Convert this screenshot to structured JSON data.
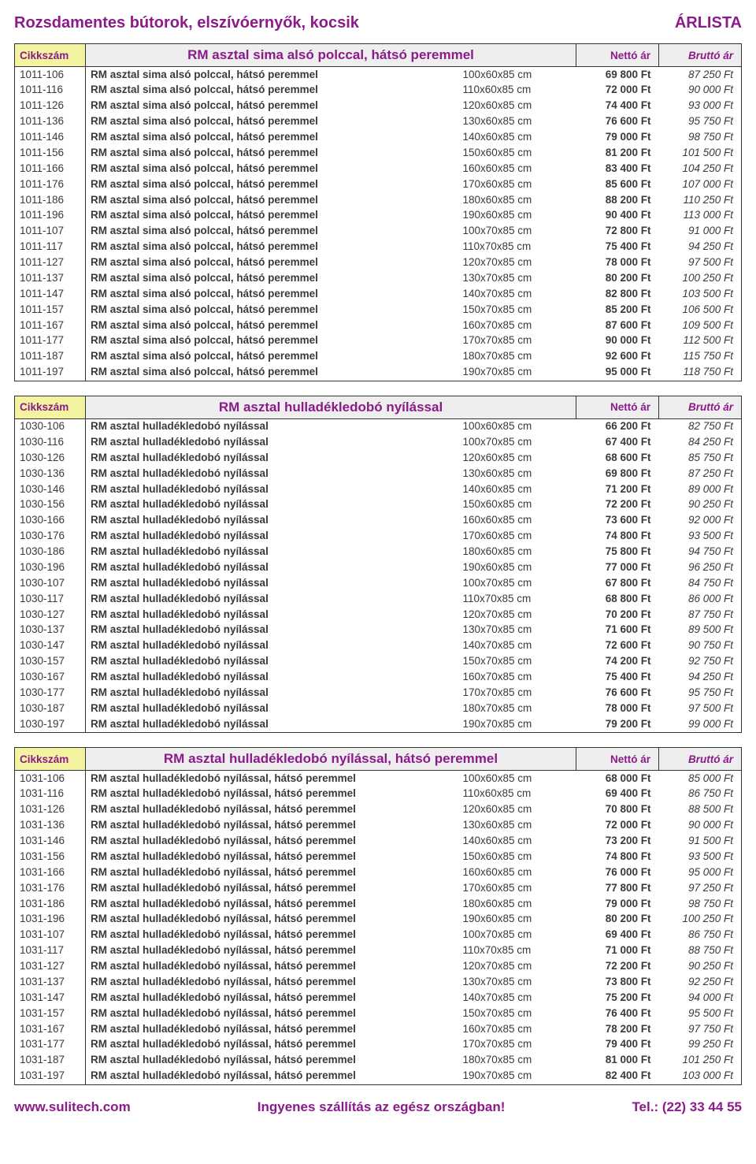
{
  "colors": {
    "text_main": "#3a3a3a",
    "accent": "#8b1a8b",
    "header_gray": "#eeeeee",
    "code_yellow": "#f3f3a0",
    "border": "#333333",
    "background": "#ffffff"
  },
  "header": {
    "title": "Rozsdamentes bútorok, elszívóernyők, kocsik",
    "right": "ÁRLISTA"
  },
  "column_labels": {
    "code": "Cikkszám",
    "netto": "Nettó ár",
    "brutto": "Bruttó ár"
  },
  "footer": {
    "left": "www.sulitech.com",
    "center": "Ingyenes szállítás az egész országban!",
    "right": "Tel.: (22) 33 44 55"
  },
  "sections": [
    {
      "title": "RM asztal sima alsó polccal, hátsó peremmel",
      "rows": [
        {
          "code": "1011-106",
          "name": "RM asztal sima alsó polccal, hátsó peremmel",
          "size": "100x60x85 cm",
          "netto": "69 800 Ft",
          "brutto": "87 250 Ft"
        },
        {
          "code": "1011-116",
          "name": "RM asztal sima alsó polccal, hátsó peremmel",
          "size": "110x60x85 cm",
          "netto": "72 000 Ft",
          "brutto": "90 000 Ft"
        },
        {
          "code": "1011-126",
          "name": "RM asztal sima alsó polccal, hátsó peremmel",
          "size": "120x60x85 cm",
          "netto": "74 400 Ft",
          "brutto": "93 000 Ft"
        },
        {
          "code": "1011-136",
          "name": "RM asztal sima alsó polccal, hátsó peremmel",
          "size": "130x60x85 cm",
          "netto": "76 600 Ft",
          "brutto": "95 750 Ft"
        },
        {
          "code": "1011-146",
          "name": "RM asztal sima alsó polccal, hátsó peremmel",
          "size": "140x60x85 cm",
          "netto": "79 000 Ft",
          "brutto": "98 750 Ft"
        },
        {
          "code": "1011-156",
          "name": "RM asztal sima alsó polccal, hátsó peremmel",
          "size": "150x60x85 cm",
          "netto": "81 200 Ft",
          "brutto": "101 500 Ft"
        },
        {
          "code": "1011-166",
          "name": "RM asztal sima alsó polccal, hátsó peremmel",
          "size": "160x60x85 cm",
          "netto": "83 400 Ft",
          "brutto": "104 250 Ft"
        },
        {
          "code": "1011-176",
          "name": "RM asztal sima alsó polccal, hátsó peremmel",
          "size": "170x60x85 cm",
          "netto": "85 600 Ft",
          "brutto": "107 000 Ft"
        },
        {
          "code": "1011-186",
          "name": "RM asztal sima alsó polccal, hátsó peremmel",
          "size": "180x60x85 cm",
          "netto": "88 200 Ft",
          "brutto": "110 250 Ft"
        },
        {
          "code": "1011-196",
          "name": "RM asztal sima alsó polccal, hátsó peremmel",
          "size": "190x60x85 cm",
          "netto": "90 400 Ft",
          "brutto": "113 000 Ft"
        },
        {
          "code": "1011-107",
          "name": "RM asztal sima alsó polccal, hátsó peremmel",
          "size": "100x70x85 cm",
          "netto": "72 800 Ft",
          "brutto": "91 000 Ft"
        },
        {
          "code": "1011-117",
          "name": "RM asztal sima alsó polccal, hátsó peremmel",
          "size": "110x70x85 cm",
          "netto": "75 400 Ft",
          "brutto": "94 250 Ft"
        },
        {
          "code": "1011-127",
          "name": "RM asztal sima alsó polccal, hátsó peremmel",
          "size": "120x70x85 cm",
          "netto": "78 000 Ft",
          "brutto": "97 500 Ft"
        },
        {
          "code": "1011-137",
          "name": "RM asztal sima alsó polccal, hátsó peremmel",
          "size": "130x70x85 cm",
          "netto": "80 200 Ft",
          "brutto": "100 250 Ft"
        },
        {
          "code": "1011-147",
          "name": "RM asztal sima alsó polccal, hátsó peremmel",
          "size": "140x70x85 cm",
          "netto": "82 800 Ft",
          "brutto": "103 500 Ft"
        },
        {
          "code": "1011-157",
          "name": "RM asztal sima alsó polccal, hátsó peremmel",
          "size": "150x70x85 cm",
          "netto": "85 200 Ft",
          "brutto": "106 500 Ft"
        },
        {
          "code": "1011-167",
          "name": "RM asztal sima alsó polccal, hátsó peremmel",
          "size": "160x70x85 cm",
          "netto": "87 600 Ft",
          "brutto": "109 500 Ft"
        },
        {
          "code": "1011-177",
          "name": "RM asztal sima alsó polccal, hátsó peremmel",
          "size": "170x70x85 cm",
          "netto": "90 000 Ft",
          "brutto": "112 500 Ft"
        },
        {
          "code": "1011-187",
          "name": "RM asztal sima alsó polccal, hátsó peremmel",
          "size": "180x70x85 cm",
          "netto": "92 600 Ft",
          "brutto": "115 750 Ft"
        },
        {
          "code": "1011-197",
          "name": "RM asztal sima alsó polccal, hátsó peremmel",
          "size": "190x70x85 cm",
          "netto": "95 000 Ft",
          "brutto": "118 750 Ft"
        }
      ]
    },
    {
      "title": "RM asztal hulladékledobó nyílással",
      "rows": [
        {
          "code": "1030-106",
          "name": "RM asztal hulladékledobó nyílással",
          "size": "100x60x85 cm",
          "netto": "66 200 Ft",
          "brutto": "82 750 Ft"
        },
        {
          "code": "1030-116",
          "name": "RM asztal hulladékledobó nyílással",
          "size": "100x70x85 cm",
          "netto": "67 400 Ft",
          "brutto": "84 250 Ft"
        },
        {
          "code": "1030-126",
          "name": "RM asztal hulladékledobó nyílással",
          "size": "120x60x85 cm",
          "netto": "68 600 Ft",
          "brutto": "85 750 Ft"
        },
        {
          "code": "1030-136",
          "name": "RM asztal hulladékledobó nyílással",
          "size": "130x60x85 cm",
          "netto": "69 800 Ft",
          "brutto": "87 250 Ft"
        },
        {
          "code": "1030-146",
          "name": "RM asztal hulladékledobó nyílással",
          "size": "140x60x85 cm",
          "netto": "71 200 Ft",
          "brutto": "89 000 Ft"
        },
        {
          "code": "1030-156",
          "name": "RM asztal hulladékledobó nyílással",
          "size": "150x60x85 cm",
          "netto": "72 200 Ft",
          "brutto": "90 250 Ft"
        },
        {
          "code": "1030-166",
          "name": "RM asztal hulladékledobó nyílással",
          "size": "160x60x85 cm",
          "netto": "73 600 Ft",
          "brutto": "92 000 Ft"
        },
        {
          "code": "1030-176",
          "name": "RM asztal hulladékledobó nyílással",
          "size": "170x60x85 cm",
          "netto": "74 800 Ft",
          "brutto": "93 500 Ft"
        },
        {
          "code": "1030-186",
          "name": "RM asztal hulladékledobó nyílással",
          "size": "180x60x85 cm",
          "netto": "75 800 Ft",
          "brutto": "94 750 Ft"
        },
        {
          "code": "1030-196",
          "name": "RM asztal hulladékledobó nyílással",
          "size": "190x60x85 cm",
          "netto": "77 000 Ft",
          "brutto": "96 250 Ft"
        },
        {
          "code": "1030-107",
          "name": "RM asztal hulladékledobó nyílással",
          "size": "100x70x85 cm",
          "netto": "67 800 Ft",
          "brutto": "84 750 Ft"
        },
        {
          "code": "1030-117",
          "name": "RM asztal hulladékledobó nyílással",
          "size": "110x70x85 cm",
          "netto": "68 800 Ft",
          "brutto": "86 000 Ft"
        },
        {
          "code": "1030-127",
          "name": "RM asztal hulladékledobó nyílással",
          "size": "120x70x85 cm",
          "netto": "70 200 Ft",
          "brutto": "87 750 Ft"
        },
        {
          "code": "1030-137",
          "name": "RM asztal hulladékledobó nyílással",
          "size": "130x70x85 cm",
          "netto": "71 600 Ft",
          "brutto": "89 500 Ft"
        },
        {
          "code": "1030-147",
          "name": "RM asztal hulladékledobó nyílással",
          "size": "140x70x85 cm",
          "netto": "72 600 Ft",
          "brutto": "90 750 Ft"
        },
        {
          "code": "1030-157",
          "name": "RM asztal hulladékledobó nyílással",
          "size": "150x70x85 cm",
          "netto": "74 200 Ft",
          "brutto": "92 750 Ft"
        },
        {
          "code": "1030-167",
          "name": "RM asztal hulladékledobó nyílással",
          "size": "160x70x85 cm",
          "netto": "75 400 Ft",
          "brutto": "94 250 Ft"
        },
        {
          "code": "1030-177",
          "name": "RM asztal hulladékledobó nyílással",
          "size": "170x70x85 cm",
          "netto": "76 600 Ft",
          "brutto": "95 750 Ft"
        },
        {
          "code": "1030-187",
          "name": "RM asztal hulladékledobó nyílással",
          "size": "180x70x85 cm",
          "netto": "78 000 Ft",
          "brutto": "97 500 Ft"
        },
        {
          "code": "1030-197",
          "name": "RM asztal hulladékledobó nyílással",
          "size": "190x70x85 cm",
          "netto": "79 200 Ft",
          "brutto": "99 000 Ft"
        }
      ]
    },
    {
      "title": "RM asztal hulladékledobó nyílással, hátsó peremmel",
      "rows": [
        {
          "code": "1031-106",
          "name": "RM asztal hulladékledobó nyílással, hátsó peremmel",
          "size": "100x60x85 cm",
          "netto": "68 000 Ft",
          "brutto": "85 000 Ft"
        },
        {
          "code": "1031-116",
          "name": "RM asztal hulladékledobó nyílással, hátsó peremmel",
          "size": "110x60x85 cm",
          "netto": "69 400 Ft",
          "brutto": "86 750 Ft"
        },
        {
          "code": "1031-126",
          "name": "RM asztal hulladékledobó nyílással, hátsó peremmel",
          "size": "120x60x85 cm",
          "netto": "70 800 Ft",
          "brutto": "88 500 Ft"
        },
        {
          "code": "1031-136",
          "name": "RM asztal hulladékledobó nyílással, hátsó peremmel",
          "size": "130x60x85 cm",
          "netto": "72 000 Ft",
          "brutto": "90 000 Ft"
        },
        {
          "code": "1031-146",
          "name": "RM asztal hulladékledobó nyílással, hátsó peremmel",
          "size": "140x60x85 cm",
          "netto": "73 200 Ft",
          "brutto": "91 500 Ft"
        },
        {
          "code": "1031-156",
          "name": "RM asztal hulladékledobó nyílással, hátsó peremmel",
          "size": "150x60x85 cm",
          "netto": "74 800 Ft",
          "brutto": "93 500 Ft"
        },
        {
          "code": "1031-166",
          "name": "RM asztal hulladékledobó nyílással, hátsó peremmel",
          "size": "160x60x85 cm",
          "netto": "76 000 Ft",
          "brutto": "95 000 Ft"
        },
        {
          "code": "1031-176",
          "name": "RM asztal hulladékledobó nyílással, hátsó peremmel",
          "size": "170x60x85 cm",
          "netto": "77 800 Ft",
          "brutto": "97 250 Ft"
        },
        {
          "code": "1031-186",
          "name": "RM asztal hulladékledobó nyílással, hátsó peremmel",
          "size": "180x60x85 cm",
          "netto": "79 000 Ft",
          "brutto": "98 750 Ft"
        },
        {
          "code": "1031-196",
          "name": "RM asztal hulladékledobó nyílással, hátsó peremmel",
          "size": "190x60x85 cm",
          "netto": "80 200 Ft",
          "brutto": "100 250 Ft"
        },
        {
          "code": "1031-107",
          "name": "RM asztal hulladékledobó nyílással, hátsó peremmel",
          "size": "100x70x85 cm",
          "netto": "69 400 Ft",
          "brutto": "86 750 Ft"
        },
        {
          "code": "1031-117",
          "name": "RM asztal hulladékledobó nyílással, hátsó peremmel",
          "size": "110x70x85 cm",
          "netto": "71 000 Ft",
          "brutto": "88 750 Ft"
        },
        {
          "code": "1031-127",
          "name": "RM asztal hulladékledobó nyílással, hátsó peremmel",
          "size": "120x70x85 cm",
          "netto": "72 200 Ft",
          "brutto": "90 250 Ft"
        },
        {
          "code": "1031-137",
          "name": "RM asztal hulladékledobó nyílással, hátsó peremmel",
          "size": "130x70x85 cm",
          "netto": "73 800 Ft",
          "brutto": "92 250 Ft"
        },
        {
          "code": "1031-147",
          "name": "RM asztal hulladékledobó nyílással, hátsó peremmel",
          "size": "140x70x85 cm",
          "netto": "75 200 Ft",
          "brutto": "94 000 Ft"
        },
        {
          "code": "1031-157",
          "name": "RM asztal hulladékledobó nyílással, hátsó peremmel",
          "size": "150x70x85 cm",
          "netto": "76 400 Ft",
          "brutto": "95 500 Ft"
        },
        {
          "code": "1031-167",
          "name": "RM asztal hulladékledobó nyílással, hátsó peremmel",
          "size": "160x70x85 cm",
          "netto": "78 200 Ft",
          "brutto": "97 750 Ft"
        },
        {
          "code": "1031-177",
          "name": "RM asztal hulladékledobó nyílással, hátsó peremmel",
          "size": "170x70x85 cm",
          "netto": "79 400 Ft",
          "brutto": "99 250 Ft"
        },
        {
          "code": "1031-187",
          "name": "RM asztal hulladékledobó nyílással, hátsó peremmel",
          "size": "180x70x85 cm",
          "netto": "81 000 Ft",
          "brutto": "101 250 Ft"
        },
        {
          "code": "1031-197",
          "name": "RM asztal hulladékledobó nyílással, hátsó peremmel",
          "size": "190x70x85 cm",
          "netto": "82 400 Ft",
          "brutto": "103 000 Ft"
        }
      ]
    }
  ]
}
